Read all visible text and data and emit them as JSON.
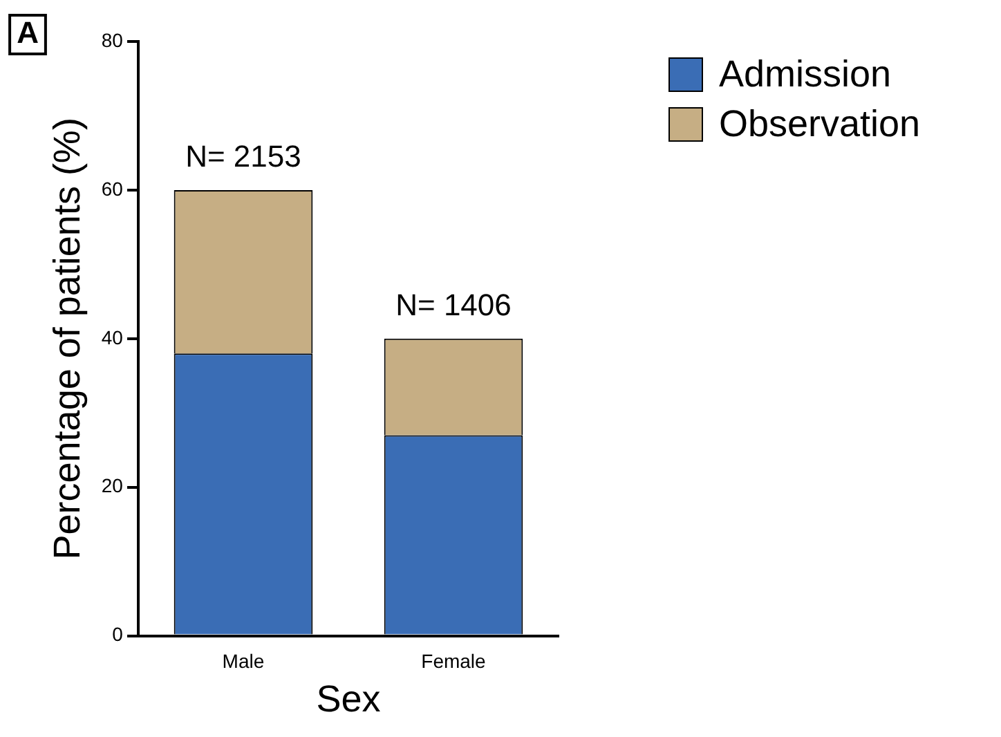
{
  "chart_data": {
    "type": "bar",
    "stacked": true,
    "xlabel": "Sex",
    "ylabel": "Percentage of patients (%)",
    "categories": [
      "Male",
      "Female"
    ],
    "series": [
      {
        "name": "Admission",
        "color": "#3a6db5",
        "values": [
          38,
          27
        ]
      },
      {
        "name": "Observation",
        "color": "#c6ae84",
        "values": [
          22,
          13
        ]
      }
    ],
    "ylim": [
      0,
      80
    ],
    "yticks": [
      0,
      20,
      40,
      60,
      80
    ],
    "grid": false,
    "legend": "top right",
    "annotations": [
      "A",
      {
        "text": "N= 2153",
        "x": "Male",
        "y": 60
      },
      {
        "text": "N= 1406",
        "x": "Female",
        "y": 40
      }
    ]
  }
}
